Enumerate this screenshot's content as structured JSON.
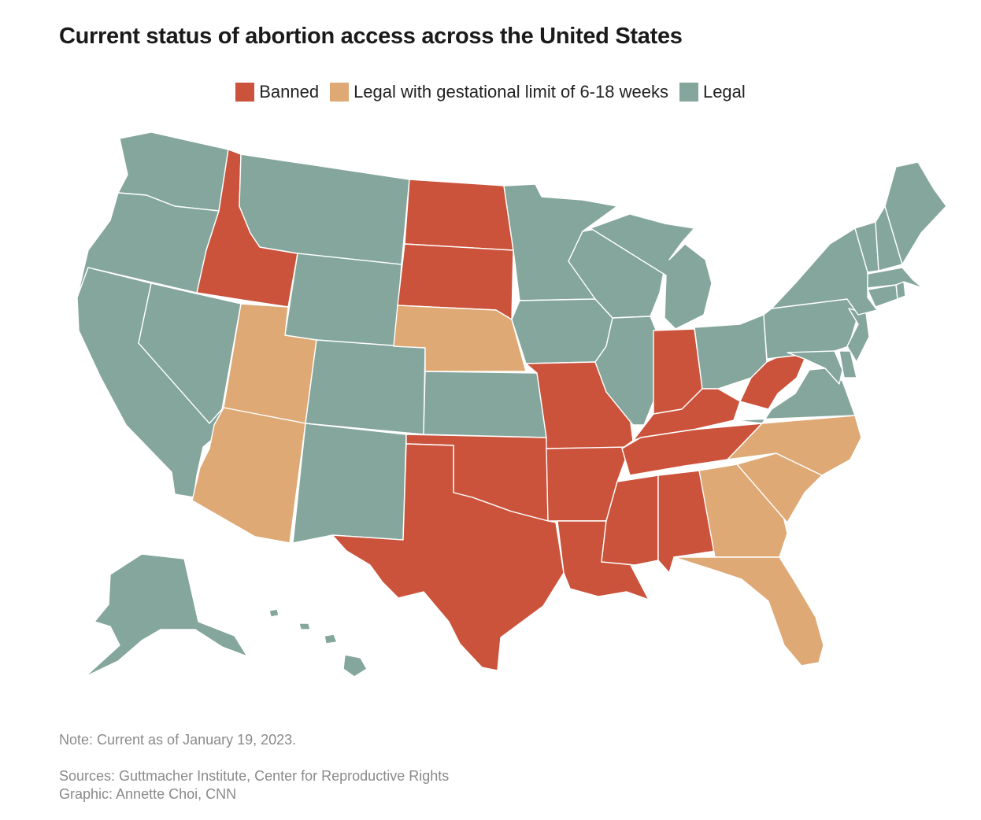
{
  "title": "Current status of abortion access across the United States",
  "legend": [
    {
      "id": "banned",
      "label": "Banned",
      "color": "#cb533b"
    },
    {
      "id": "limit",
      "label": "Legal with gestational limit of 6-18 weeks",
      "color": "#dfa975"
    },
    {
      "id": "legal",
      "label": "Legal",
      "color": "#84a69d"
    }
  ],
  "status_by_state": {
    "WA": "legal",
    "OR": "legal",
    "CA": "legal",
    "NV": "legal",
    "ID": "banned",
    "MT": "legal",
    "WY": "legal",
    "UT": "limit",
    "AZ": "limit",
    "CO": "legal",
    "NM": "legal",
    "ND": "banned",
    "SD": "banned",
    "NE": "limit",
    "KS": "legal",
    "OK": "banned",
    "TX": "banned",
    "MN": "legal",
    "IA": "legal",
    "MO": "banned",
    "AR": "banned",
    "LA": "banned",
    "WI": "legal",
    "IL": "legal",
    "MI": "legal",
    "IN": "banned",
    "OH": "legal",
    "KY": "banned",
    "TN": "banned",
    "MS": "banned",
    "AL": "banned",
    "GA": "limit",
    "FL": "limit",
    "SC": "limit",
    "NC": "limit",
    "VA": "legal",
    "WV": "banned",
    "PA": "legal",
    "NY": "legal",
    "NJ": "legal",
    "DE": "legal",
    "MD": "legal",
    "CT": "legal",
    "RI": "legal",
    "MA": "legal",
    "VT": "legal",
    "NH": "legal",
    "ME": "legal",
    "AK": "legal",
    "HI": "legal"
  },
  "note": "Note: Current as of January 19, 2023.",
  "sources": "Sources: Guttmacher Institute, Center for Reproductive Rights",
  "credit": "Graphic: Annette Choi, CNN"
}
